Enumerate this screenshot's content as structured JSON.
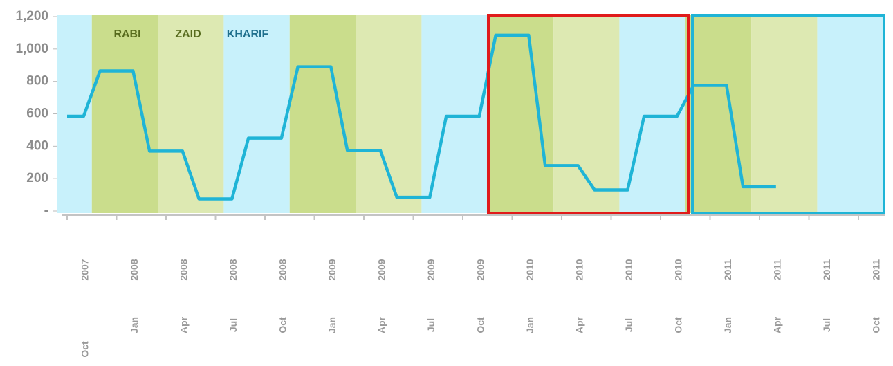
{
  "chart_data": {
    "type": "line",
    "seasons": [
      {
        "name": "RABI",
        "color": "#cadd8c",
        "text_color": "#566a1c"
      },
      {
        "name": "ZAID",
        "color": "#dde9b2",
        "text_color": "#566a1c"
      },
      {
        "name": "KHARIF",
        "color": "#c8f1fb",
        "text_color": "#1e6f8c"
      }
    ],
    "x": [
      "2007-10",
      "2007-11",
      "2007-12",
      "2008-01",
      "2008-02",
      "2008-03",
      "2008-04",
      "2008-05",
      "2008-06",
      "2008-07",
      "2008-08",
      "2008-09",
      "2008-10",
      "2008-11",
      "2008-12",
      "2009-01",
      "2009-02",
      "2009-03",
      "2009-04",
      "2009-05",
      "2009-06",
      "2009-07",
      "2009-08",
      "2009-09",
      "2009-10",
      "2009-11",
      "2009-12",
      "2010-01",
      "2010-02",
      "2010-03",
      "2010-04",
      "2010-05",
      "2010-06",
      "2010-07",
      "2010-08",
      "2010-09",
      "2010-10",
      "2010-11",
      "2010-12",
      "2011-01",
      "2011-02",
      "2011-03",
      "2011-04",
      "2011-05"
    ],
    "series": [
      {
        "color": "#1fb4d6",
        "values": [
          585,
          585,
          865,
          865,
          865,
          370,
          370,
          370,
          75,
          75,
          75,
          450,
          450,
          450,
          890,
          890,
          890,
          375,
          375,
          375,
          85,
          85,
          85,
          585,
          585,
          585,
          1085,
          1085,
          1085,
          280,
          280,
          280,
          130,
          130,
          130,
          585,
          585,
          585,
          775,
          775,
          775,
          150,
          150,
          150
        ]
      }
    ],
    "xlim": [
      "2007-10",
      "2011-10"
    ],
    "xticks": [
      {
        "value": "2007-10",
        "month": "Oct",
        "year": "2007"
      },
      {
        "value": "2008-01",
        "month": "Jan",
        "year": "2008"
      },
      {
        "value": "2008-04",
        "month": "Apr",
        "year": "2008"
      },
      {
        "value": "2008-07",
        "month": "Jul",
        "year": "2008"
      },
      {
        "value": "2008-10",
        "month": "Oct",
        "year": "2008"
      },
      {
        "value": "2009-01",
        "month": "Jan",
        "year": "2009"
      },
      {
        "value": "2009-04",
        "month": "Apr",
        "year": "2009"
      },
      {
        "value": "2009-07",
        "month": "Jul",
        "year": "2009"
      },
      {
        "value": "2009-10",
        "month": "Oct",
        "year": "2009"
      },
      {
        "value": "2010-01",
        "month": "Jan",
        "year": "2010"
      },
      {
        "value": "2010-04",
        "month": "Apr",
        "year": "2010"
      },
      {
        "value": "2010-07",
        "month": "Jul",
        "year": "2010"
      },
      {
        "value": "2010-10",
        "month": "Oct",
        "year": "2010"
      },
      {
        "value": "2011-01",
        "month": "Jan",
        "year": "2011"
      },
      {
        "value": "2011-04",
        "month": "Apr",
        "year": "2011"
      },
      {
        "value": "2011-07",
        "month": "Jul",
        "year": "2011"
      },
      {
        "value": "2011-10",
        "month": "Oct",
        "year": "2011"
      }
    ],
    "ylim": [
      0,
      1200
    ],
    "yticks": [
      {
        "value": 0,
        "label": "-"
      },
      200,
      400,
      600,
      800,
      {
        "value": 1000,
        "label": "1,000"
      },
      {
        "value": 1200,
        "label": "1,200"
      }
    ],
    "grid": false
  }
}
